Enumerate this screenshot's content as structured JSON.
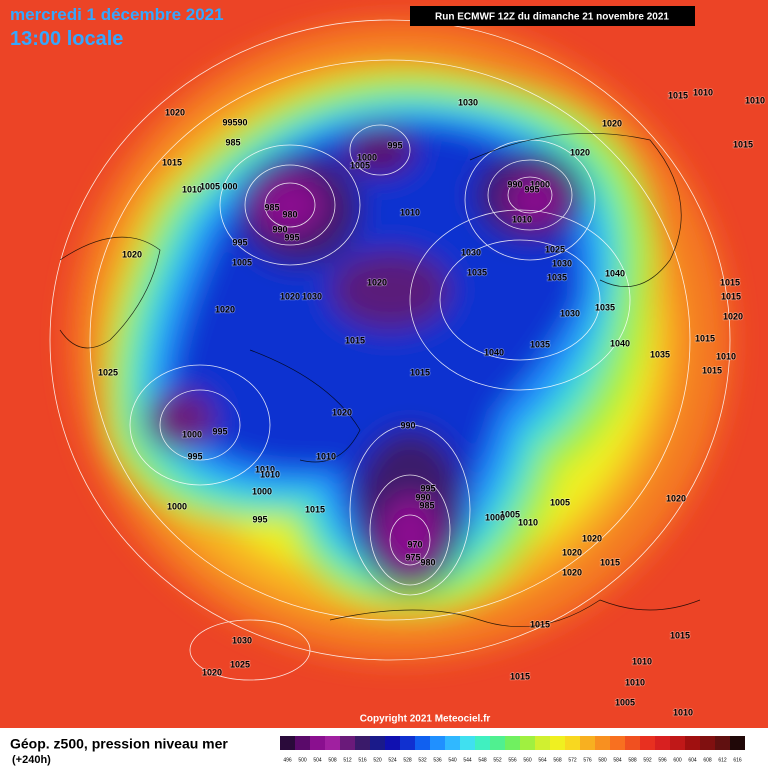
{
  "header": {
    "title": "mercredi 1 décembre 2021",
    "subtitle": "13:00 locale",
    "run": "Run ECMWF 12Z du dimanche 21 novembre 2021"
  },
  "map": {
    "copyright": "Copyright 2021 Meteociel.fr",
    "isobar_labels": [
      "1020",
      "99590",
      "985",
      "1015",
      "1010",
      "1005",
      "000",
      "985",
      "980",
      "990",
      "995",
      "995",
      "1005",
      "1020",
      "1020",
      "1025",
      "1020",
      "1030",
      "1020",
      "1015",
      "1000",
      "995",
      "1005",
      "1030",
      "1010",
      "1030",
      "1035",
      "1040",
      "1035",
      "1030",
      "1025",
      "1030",
      "1035",
      "1040",
      "1035",
      "1040",
      "1035",
      "990",
      "1000",
      "995",
      "1010",
      "1020",
      "1020",
      "1015",
      "1010",
      "1010",
      "1015",
      "1015",
      "1015",
      "1020",
      "1015",
      "1010",
      "1015",
      "1015",
      "1020",
      "990",
      "1010",
      "1000",
      "995",
      "995",
      "1010",
      "1010",
      "1000",
      "1000",
      "995",
      "1015",
      "995",
      "990",
      "985",
      "1005",
      "1010",
      "1000",
      "1005",
      "970",
      "975",
      "980",
      "1020",
      "1020",
      "1015",
      "1020",
      "1020",
      "1015",
      "1030",
      "1025",
      "1020",
      "1015",
      "1010",
      "1015",
      "1010",
      "1005",
      "1010"
    ]
  },
  "footer": {
    "title": "Géop. z500, pression niveau mer",
    "subtitle": "(+240h)"
  },
  "legend": {
    "levels": [
      496,
      500,
      504,
      508,
      512,
      516,
      520,
      524,
      528,
      532,
      536,
      540,
      544,
      548,
      552,
      556,
      560,
      564,
      568,
      572,
      576,
      580,
      584,
      588,
      592,
      596,
      600,
      604,
      608,
      612,
      616
    ],
    "colors": [
      "#2a0a3a",
      "#5a0a6a",
      "#8a0f8f",
      "#a020a0",
      "#6a1a7a",
      "#3a1a6a",
      "#1a1a8a",
      "#1010b0",
      "#1030d0",
      "#1060f0",
      "#2090ff",
      "#30b8ff",
      "#40e0f0",
      "#40f0c0",
      "#50f090",
      "#70f060",
      "#a0f040",
      "#d0f030",
      "#f0f020",
      "#f8d820",
      "#f8b020",
      "#f89020",
      "#f87020",
      "#f05020",
      "#e83020",
      "#d82020",
      "#c01818",
      "#a01010",
      "#801010",
      "#601010",
      "#200808"
    ]
  }
}
